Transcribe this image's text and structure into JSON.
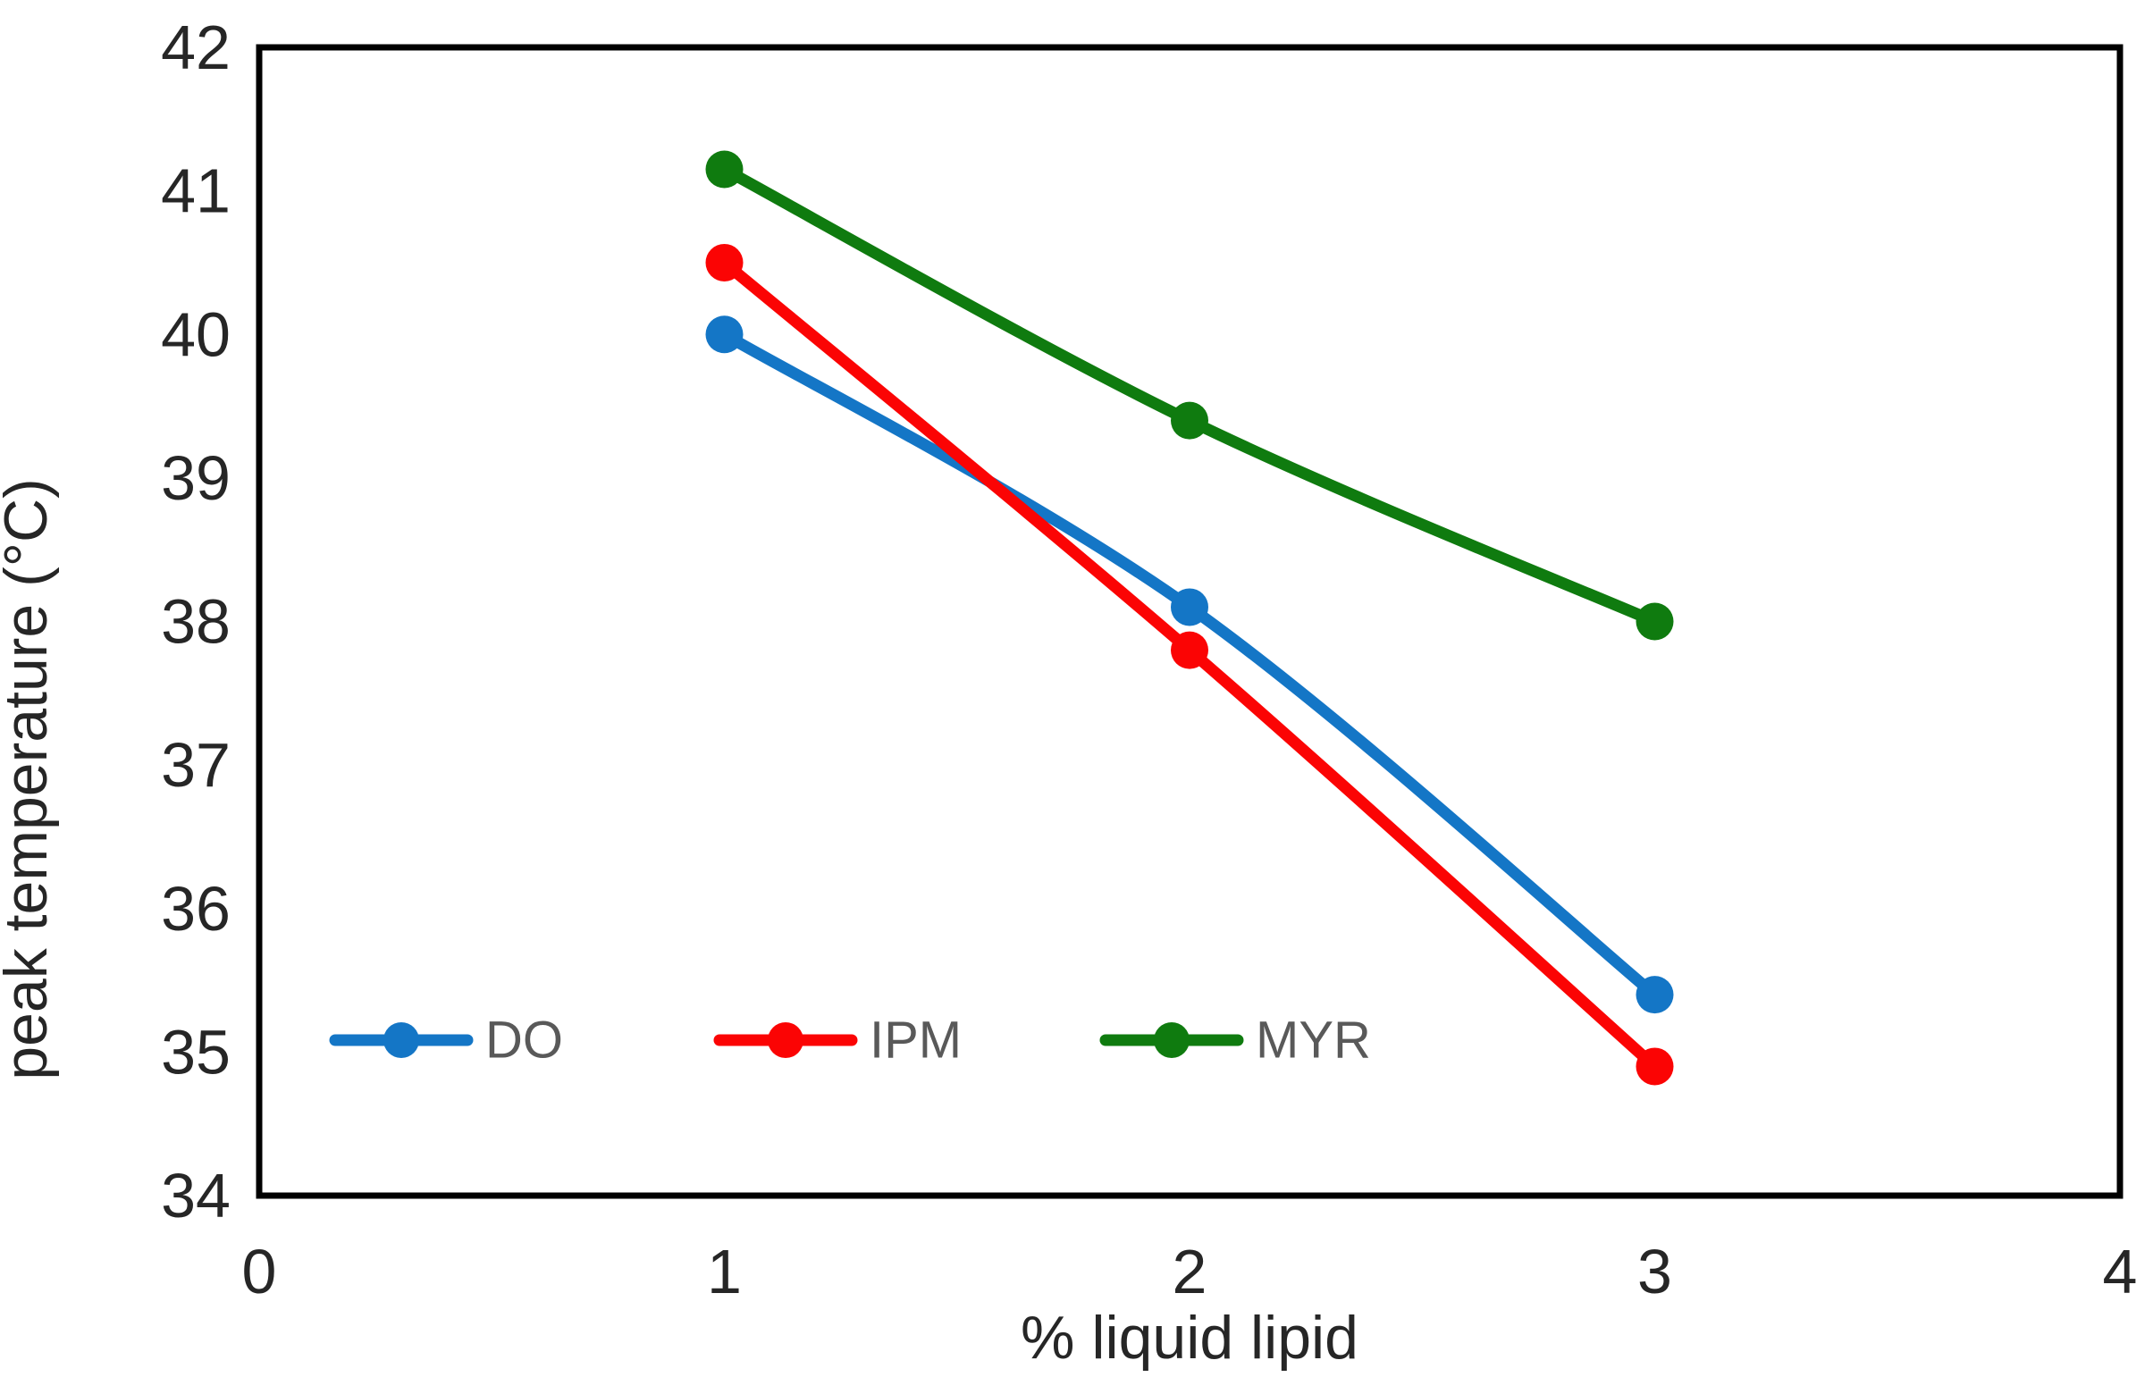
{
  "figure": {
    "background": "#ffffff",
    "frame_color": "#000000",
    "frame_stroke_width": 7,
    "tick_label_color": "#262626",
    "axis_title_color": "#262626",
    "legend_text_color": "#595959"
  },
  "chart_data": {
    "type": "line",
    "title": "",
    "xlabel": "% liquid lipid",
    "ylabel": "peak temperature (°C)",
    "x": [
      1,
      2,
      3
    ],
    "xlim": [
      0,
      4
    ],
    "ylim": [
      34,
      42
    ],
    "xticks": [
      0,
      1,
      2,
      3,
      4
    ],
    "yticks": [
      34,
      35,
      36,
      37,
      38,
      39,
      40,
      41,
      42
    ],
    "grid": false,
    "marker": "circle",
    "smooth_lines": true,
    "legend_position": "inside-bottom-left",
    "series": [
      {
        "name": "DO",
        "color": "#1476C6",
        "values": [
          40.0,
          38.1,
          35.4
        ]
      },
      {
        "name": "IPM",
        "color": "#FB0404",
        "values": [
          40.5,
          37.8,
          34.9
        ]
      },
      {
        "name": "MYR",
        "color": "#0F7B0F",
        "values": [
          41.15,
          39.4,
          38.0
        ]
      }
    ]
  }
}
